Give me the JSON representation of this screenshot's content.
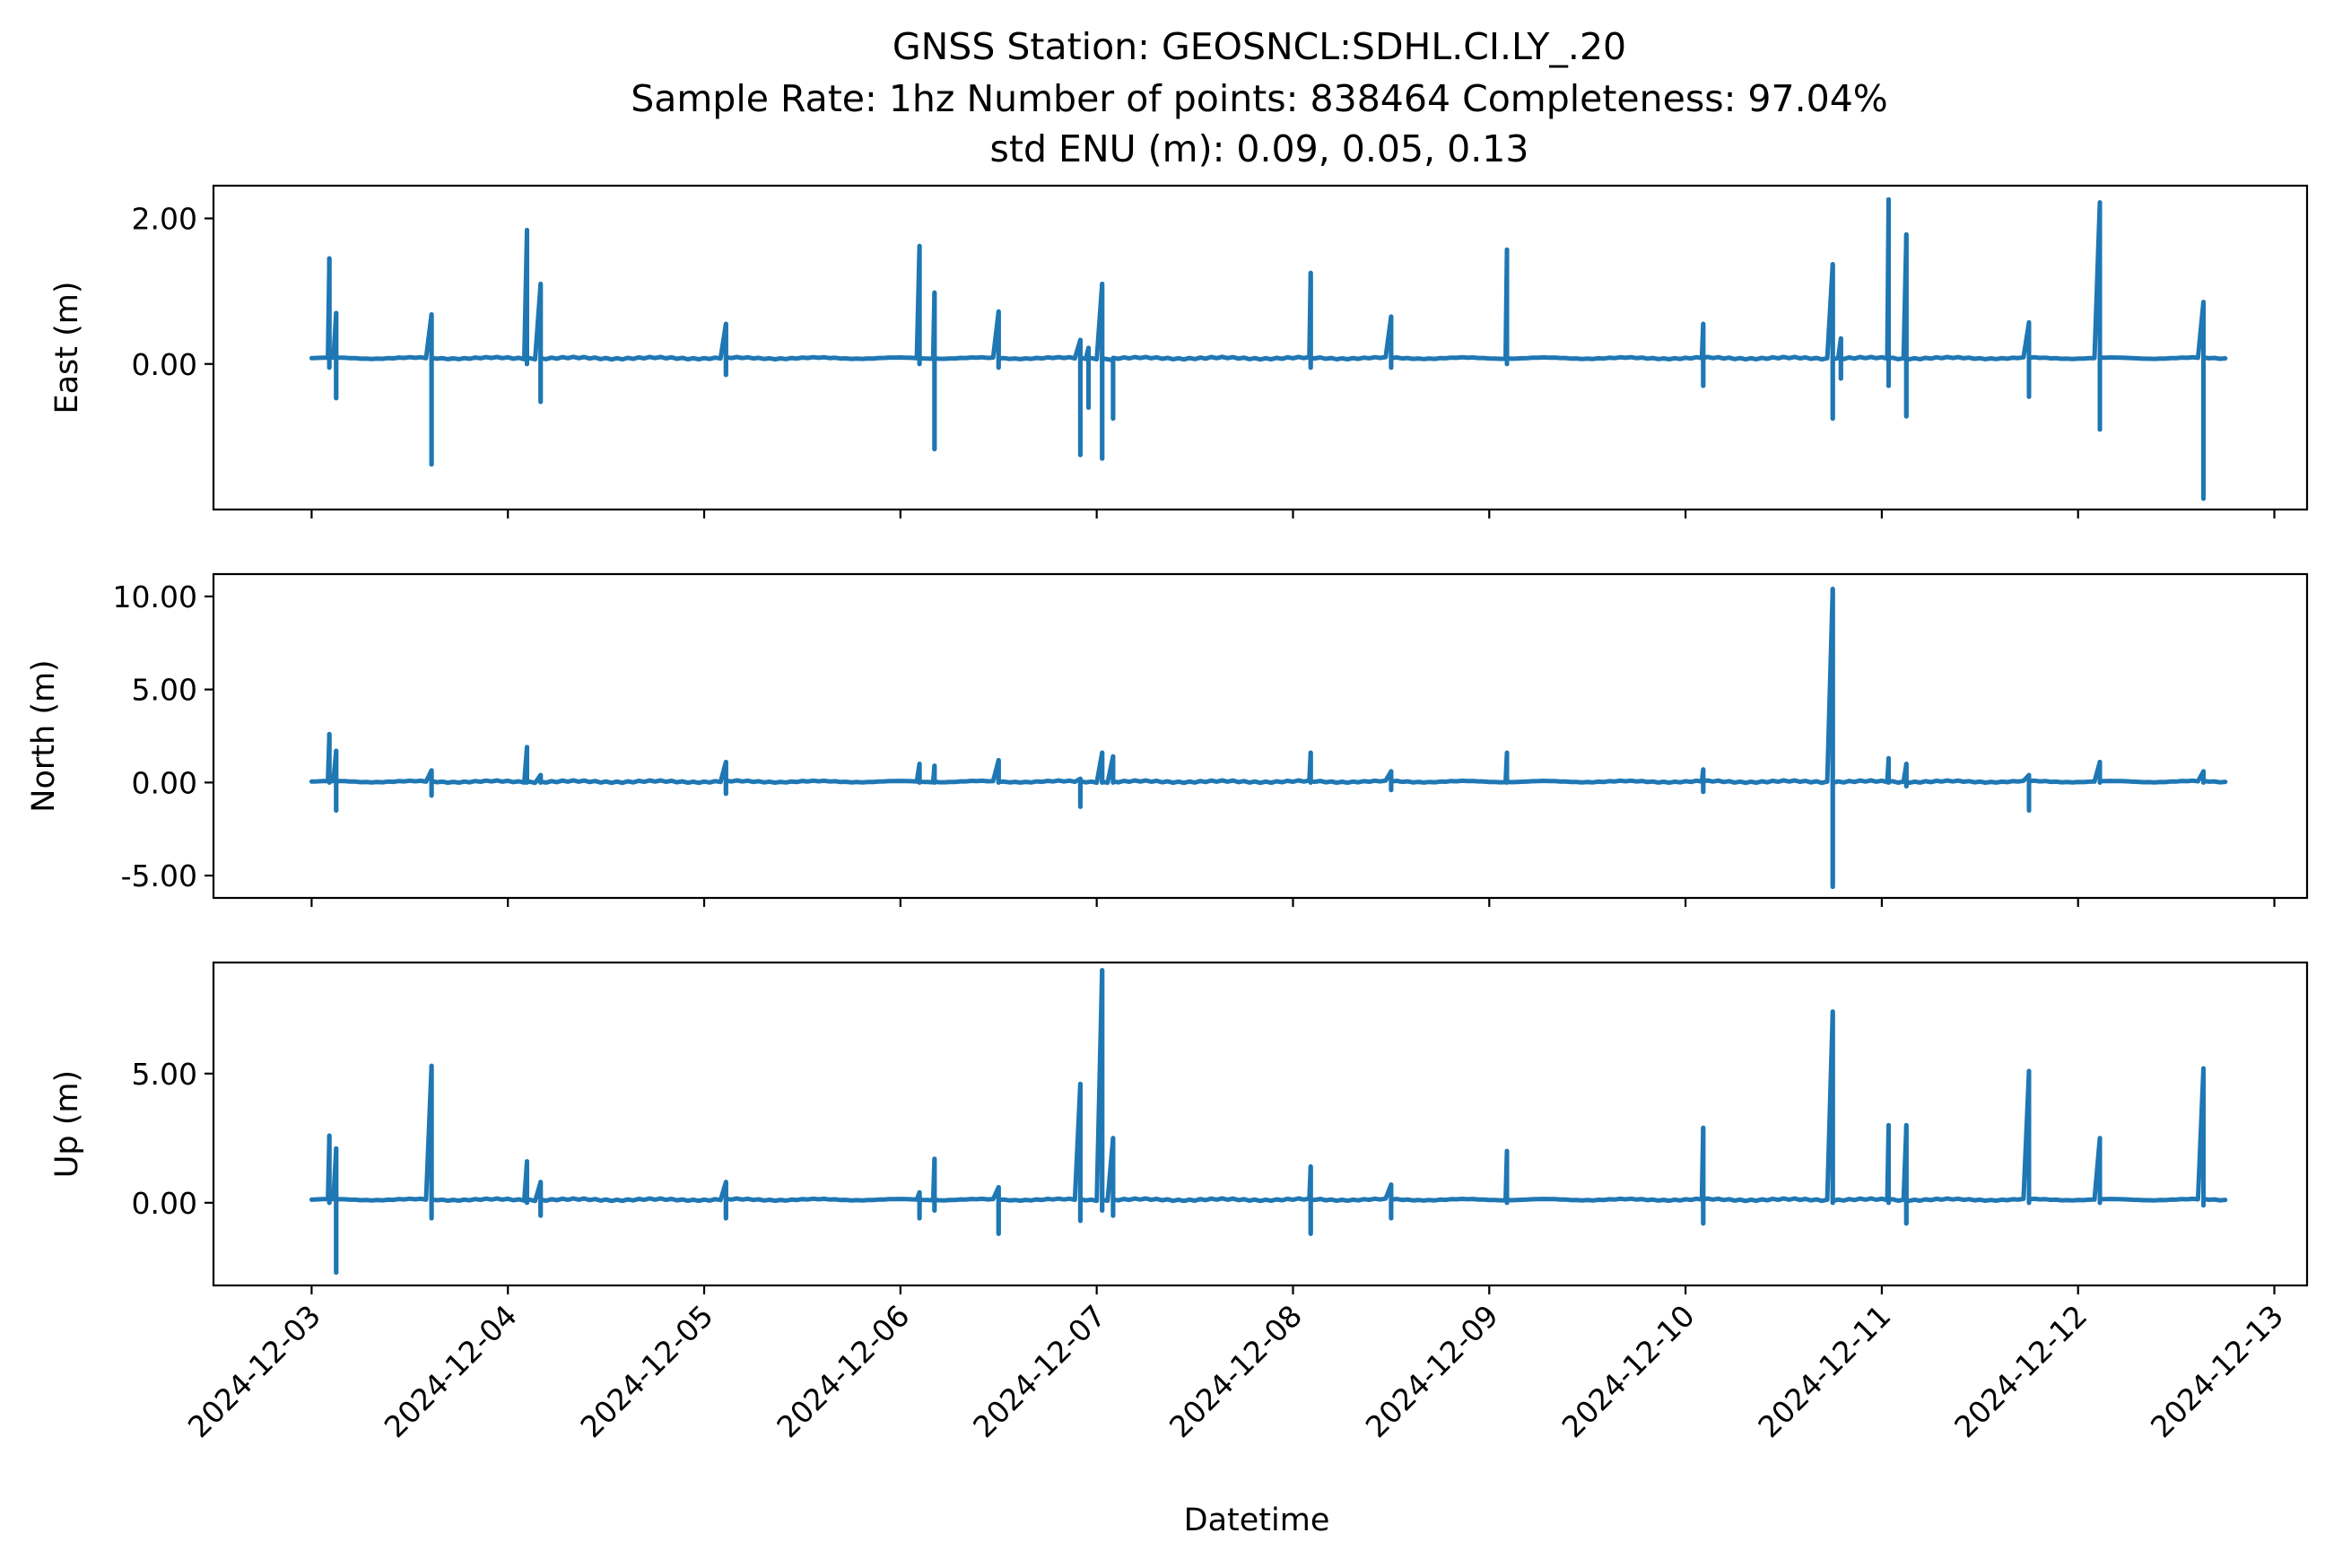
{
  "title": {
    "line1": "GNSS Station: GEOSNCL:SDHL.CI.LY_.20",
    "line2": "Sample Rate: 1hz   Number of points: 838464    Completeness:  97.04%",
    "line3": "std ENU (m):  0.09, 0.05, 0.13"
  },
  "chart_data": [
    {
      "type": "line",
      "ylabel": "East (m)",
      "xlabel": "",
      "color": "#1f77b4",
      "xlim": [
        "2024-12-02 12:00",
        "2024-12-13 04:00"
      ],
      "ylim": [
        -2.0,
        2.45
      ],
      "yticks": [
        0.0,
        2.0
      ],
      "ytick_labels": [
        "0.00",
        "2.00"
      ],
      "baseline": 0.08,
      "spikes": [
        {
          "t": "2024-12-03 02:10",
          "min": -0.05,
          "max": 1.45
        },
        {
          "t": "2024-12-03 03:00",
          "min": -0.47,
          "max": 0.7
        },
        {
          "t": "2024-12-03 14:40",
          "min": -1.38,
          "max": 0.68
        },
        {
          "t": "2024-12-04 02:20",
          "min": 0.0,
          "max": 1.84
        },
        {
          "t": "2024-12-04 04:00",
          "min": -0.52,
          "max": 1.1
        },
        {
          "t": "2024-12-05 02:40",
          "min": -0.15,
          "max": 0.55
        },
        {
          "t": "2024-12-06 02:20",
          "min": 0.0,
          "max": 1.62
        },
        {
          "t": "2024-12-06 04:10",
          "min": -1.17,
          "max": 0.98
        },
        {
          "t": "2024-12-06 12:00",
          "min": -0.05,
          "max": 0.72
        },
        {
          "t": "2024-12-06 22:00",
          "min": -1.25,
          "max": 0.33
        },
        {
          "t": "2024-12-06 23:00",
          "min": -0.6,
          "max": 0.22
        },
        {
          "t": "2024-12-07 00:40",
          "min": -1.3,
          "max": 1.1
        },
        {
          "t": "2024-12-07 02:00",
          "min": -0.75,
          "max": 0.05
        },
        {
          "t": "2024-12-08 02:10",
          "min": -0.05,
          "max": 1.25
        },
        {
          "t": "2024-12-08 12:00",
          "min": -0.05,
          "max": 0.65
        },
        {
          "t": "2024-12-09 02:10",
          "min": 0.0,
          "max": 1.57
        },
        {
          "t": "2024-12-10 02:10",
          "min": -0.3,
          "max": 0.55
        },
        {
          "t": "2024-12-10 18:00",
          "min": -0.75,
          "max": 1.37
        },
        {
          "t": "2024-12-10 19:00",
          "min": -0.2,
          "max": 0.35
        },
        {
          "t": "2024-12-11 00:50",
          "min": -0.3,
          "max": 2.26
        },
        {
          "t": "2024-12-11 03:00",
          "min": -0.72,
          "max": 1.78
        },
        {
          "t": "2024-12-11 18:00",
          "min": -0.45,
          "max": 0.57
        },
        {
          "t": "2024-12-12 02:40",
          "min": -0.9,
          "max": 2.22
        },
        {
          "t": "2024-12-12 15:20",
          "min": -1.85,
          "max": 0.85
        }
      ]
    },
    {
      "type": "line",
      "ylabel": "North (m)",
      "xlabel": "",
      "color": "#1f77b4",
      "xlim": [
        "2024-12-02 12:00",
        "2024-12-13 04:00"
      ],
      "ylim": [
        -6.2,
        11.2
      ],
      "yticks": [
        -5.0,
        0.0,
        5.0,
        10.0
      ],
      "ytick_labels": [
        "-5.00",
        "0.00",
        "5.00",
        "10.00"
      ],
      "baseline": 0.05,
      "spikes": [
        {
          "t": "2024-12-03 02:10",
          "min": 0.0,
          "max": 2.6
        },
        {
          "t": "2024-12-03 03:00",
          "min": -1.5,
          "max": 1.7
        },
        {
          "t": "2024-12-03 14:40",
          "min": -0.7,
          "max": 0.65
        },
        {
          "t": "2024-12-04 02:20",
          "min": 0.0,
          "max": 1.9
        },
        {
          "t": "2024-12-04 04:00",
          "min": 0.0,
          "max": 0.4
        },
        {
          "t": "2024-12-05 02:40",
          "min": -0.6,
          "max": 1.1
        },
        {
          "t": "2024-12-06 02:20",
          "min": 0.0,
          "max": 1.0
        },
        {
          "t": "2024-12-06 04:10",
          "min": 0.0,
          "max": 0.9
        },
        {
          "t": "2024-12-06 12:00",
          "min": 0.0,
          "max": 1.2
        },
        {
          "t": "2024-12-06 22:00",
          "min": -1.3,
          "max": 0.2
        },
        {
          "t": "2024-12-07 00:40",
          "min": 0.0,
          "max": 1.6
        },
        {
          "t": "2024-12-07 02:00",
          "min": 0.0,
          "max": 1.4
        },
        {
          "t": "2024-12-08 02:10",
          "min": 0.0,
          "max": 1.6
        },
        {
          "t": "2024-12-08 12:00",
          "min": -0.4,
          "max": 0.6
        },
        {
          "t": "2024-12-09 02:10",
          "min": 0.0,
          "max": 1.6
        },
        {
          "t": "2024-12-10 02:10",
          "min": -0.5,
          "max": 0.7
        },
        {
          "t": "2024-12-10 18:00",
          "min": -5.6,
          "max": 10.4
        },
        {
          "t": "2024-12-11 00:50",
          "min": 0.0,
          "max": 1.3
        },
        {
          "t": "2024-12-11 03:00",
          "min": -0.2,
          "max": 1.0
        },
        {
          "t": "2024-12-11 18:00",
          "min": -1.5,
          "max": 0.4
        },
        {
          "t": "2024-12-12 02:40",
          "min": 0.0,
          "max": 1.1
        },
        {
          "t": "2024-12-12 15:20",
          "min": 0.0,
          "max": 0.6
        }
      ]
    },
    {
      "type": "line",
      "ylabel": "Up (m)",
      "xlabel": "Datetime",
      "color": "#1f77b4",
      "xlim": [
        "2024-12-02 12:00",
        "2024-12-13 04:00"
      ],
      "ylim": [
        -3.2,
        9.3
      ],
      "yticks": [
        0.0,
        5.0
      ],
      "ytick_labels": [
        "0.00",
        "5.00"
      ],
      "xticks": [
        "2024-12-03",
        "2024-12-04",
        "2024-12-05",
        "2024-12-06",
        "2024-12-07",
        "2024-12-08",
        "2024-12-09",
        "2024-12-10",
        "2024-12-11",
        "2024-12-12",
        "2024-12-13"
      ],
      "baseline": 0.12,
      "spikes": [
        {
          "t": "2024-12-03 02:10",
          "min": 0.0,
          "max": 2.6
        },
        {
          "t": "2024-12-03 03:00",
          "min": -2.7,
          "max": 2.1
        },
        {
          "t": "2024-12-03 14:40",
          "min": -0.6,
          "max": 5.3
        },
        {
          "t": "2024-12-04 02:20",
          "min": 0.0,
          "max": 1.6
        },
        {
          "t": "2024-12-04 04:00",
          "min": -0.5,
          "max": 0.8
        },
        {
          "t": "2024-12-05 02:40",
          "min": -0.6,
          "max": 0.8
        },
        {
          "t": "2024-12-06 02:20",
          "min": -0.6,
          "max": 0.4
        },
        {
          "t": "2024-12-06 04:10",
          "min": -0.3,
          "max": 1.7
        },
        {
          "t": "2024-12-06 12:00",
          "min": -1.2,
          "max": 0.6
        },
        {
          "t": "2024-12-06 22:00",
          "min": -0.7,
          "max": 4.6
        },
        {
          "t": "2024-12-07 00:40",
          "min": -0.3,
          "max": 9.0
        },
        {
          "t": "2024-12-07 02:00",
          "min": -0.5,
          "max": 2.5
        },
        {
          "t": "2024-12-08 02:10",
          "min": -1.2,
          "max": 1.4
        },
        {
          "t": "2024-12-08 12:00",
          "min": -0.6,
          "max": 0.7
        },
        {
          "t": "2024-12-09 02:10",
          "min": 0.0,
          "max": 2.0
        },
        {
          "t": "2024-12-10 02:10",
          "min": -0.8,
          "max": 2.9
        },
        {
          "t": "2024-12-10 18:00",
          "min": 0.0,
          "max": 7.4
        },
        {
          "t": "2024-12-11 00:50",
          "min": 0.0,
          "max": 3.0
        },
        {
          "t": "2024-12-11 03:00",
          "min": -0.8,
          "max": 3.0
        },
        {
          "t": "2024-12-11 18:00",
          "min": 0.0,
          "max": 5.1
        },
        {
          "t": "2024-12-12 02:40",
          "min": 0.0,
          "max": 2.5
        },
        {
          "t": "2024-12-12 15:20",
          "min": -0.1,
          "max": 5.2
        }
      ]
    }
  ]
}
